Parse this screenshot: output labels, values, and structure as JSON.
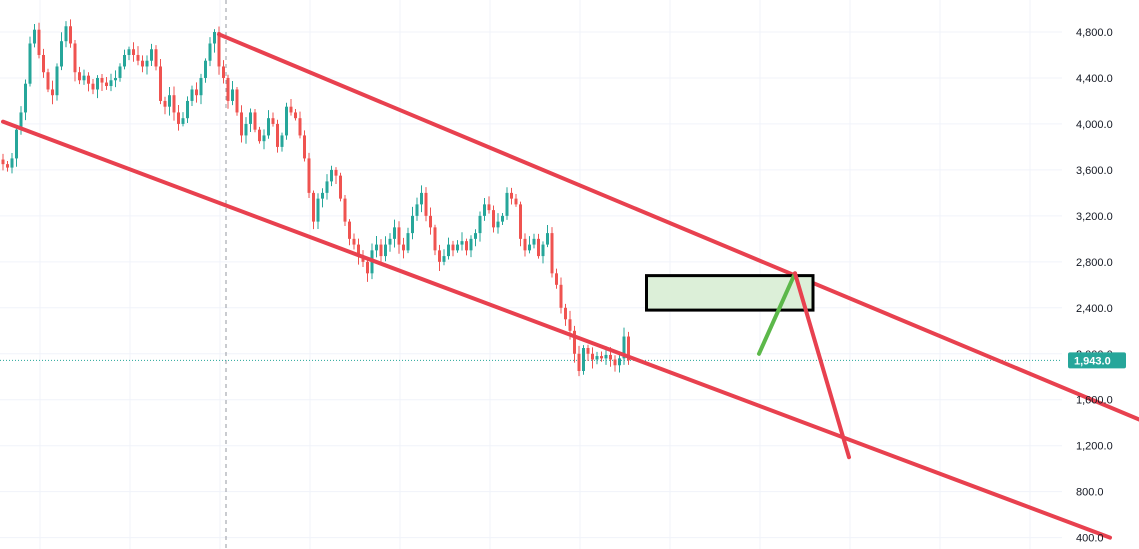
{
  "chart_data": {
    "type": "candlestick",
    "ylim": [
      400,
      4900
    ],
    "y_tick_labels": [
      "4,800.0",
      "4,400.0",
      "4,000.0",
      "3,600.0",
      "3,200.0",
      "2,800.0",
      "2,400.0",
      "2,000.0",
      "1,600.0",
      "1,200.0",
      "800.0",
      "400.0"
    ],
    "y_ticks": [
      4800,
      4400,
      4000,
      3600,
      3200,
      2800,
      2400,
      2000,
      1600,
      1200,
      800,
      400
    ],
    "grid": true,
    "last_price": 1943,
    "last_price_label": "1,943.0",
    "colors": {
      "up": "#26a69a",
      "down": "#ef5350",
      "channel": "#e8414f",
      "projection_up": "#5cb84a",
      "projection_down": "#e8414f",
      "zone_fill": "#dcefd8",
      "zone_border": "#000000",
      "grid": "#f0f3fa",
      "axis_text": "#131722",
      "price_line": "#26a69a",
      "price_label_bg": "#26a69a"
    },
    "closes": [
      3650,
      3620,
      3700,
      3950,
      4100,
      4350,
      4700,
      4820,
      4600,
      4450,
      4300,
      4250,
      4500,
      4720,
      4850,
      4700,
      4450,
      4380,
      4420,
      4350,
      4300,
      4400,
      4360,
      4330,
      4380,
      4400,
      4500,
      4600,
      4650,
      4600,
      4550,
      4500,
      4550,
      4650,
      4500,
      4200,
      4150,
      4250,
      4100,
      4000,
      4050,
      4200,
      4300,
      4250,
      4400,
      4550,
      4700,
      4800,
      4500,
      4400,
      4200,
      4300,
      4100,
      3900,
      4000,
      4100,
      3950,
      3850,
      3900,
      4050,
      4000,
      3800,
      3900,
      4150,
      4100,
      4050,
      3900,
      3700,
      3400,
      3150,
      3350,
      3400,
      3500,
      3600,
      3550,
      3350,
      3150,
      3000,
      2950,
      2850,
      2800,
      2700,
      2900,
      2950,
      2850,
      2950,
      3000,
      3100,
      2950,
      2900,
      3050,
      3200,
      3300,
      3400,
      3200,
      3100,
      2900,
      2800,
      2850,
      2950,
      2900,
      2950,
      2980,
      2900,
      3000,
      3050,
      3200,
      3300,
      3250,
      3100,
      3150,
      3200,
      3400,
      3350,
      3300,
      3000,
      2900,
      2950,
      3000,
      2850,
      2950,
      3050,
      2700,
      2600,
      2400,
      2300,
      2200,
      2000,
      1850,
      2050,
      2000,
      1950,
      1980,
      1960,
      1990,
      1950,
      1900,
      1960,
      2150,
      1943
    ],
    "annotations": {
      "channel_upper": [
        {
          "x": 48,
          "y": 4780
        },
        {
          "x": 267,
          "y": 1190
        }
      ],
      "channel_lower": [
        {
          "x": 0,
          "y": 4020
        },
        {
          "x": 246,
          "y": 400
        }
      ],
      "channel_mid_point": {
        "x": 188,
        "y": 1100
      },
      "projection_up": [
        {
          "x": 168,
          "y": 2000
        },
        {
          "x": 176,
          "y": 2700
        }
      ],
      "projection_down": [
        {
          "x": 176,
          "y": 2700
        },
        {
          "x": 188,
          "y": 1100
        }
      ],
      "resistance_zone": {
        "x0": 143,
        "x1": 180,
        "y0": 2380,
        "y1": 2680
      }
    },
    "marker_index": 50
  }
}
